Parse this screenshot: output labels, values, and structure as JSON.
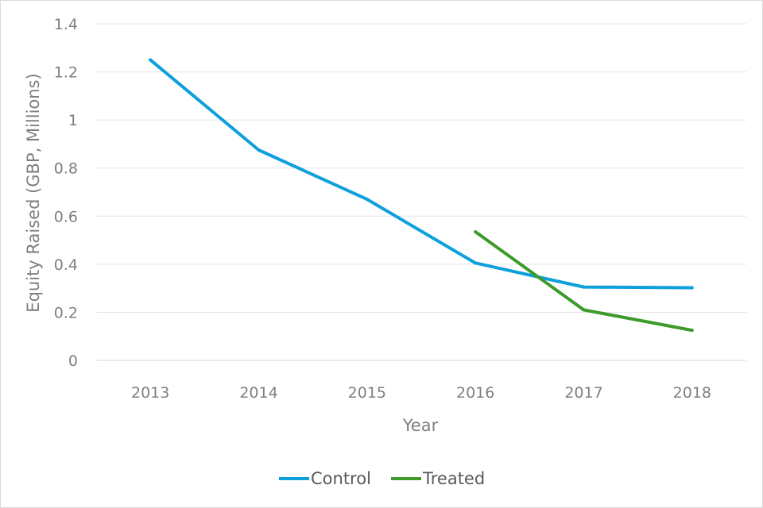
{
  "chart_data": {
    "type": "line",
    "categories": [
      "2013",
      "2014",
      "2015",
      "2016",
      "2017",
      "2018"
    ],
    "series": [
      {
        "name": "Control",
        "color": "#0ea0dc",
        "values": [
          1.25,
          0.875,
          0.67,
          0.405,
          0.305,
          0.302
        ]
      },
      {
        "name": "Treated",
        "color": "#3d9a2b",
        "values": [
          null,
          null,
          null,
          0.535,
          0.21,
          0.125
        ]
      }
    ],
    "title": "",
    "xlabel": "Year",
    "ylabel": "Equity Raised (GBP, Millions)",
    "ylim": [
      0,
      1.4
    ],
    "yticks": [
      "0",
      "0.2",
      "0.4",
      "0.6",
      "0.8",
      "1",
      "1.2",
      "1.4"
    ],
    "grid": true,
    "legend": "bottom-center"
  }
}
